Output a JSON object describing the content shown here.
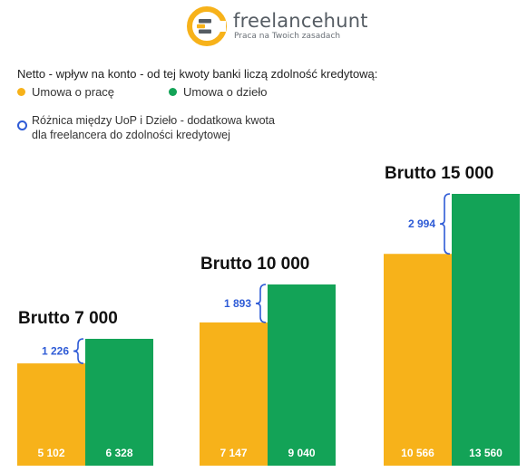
{
  "brand": {
    "name": "freelancehunt",
    "tagline": "Praca na Twoich zasadach",
    "colors": {
      "orange": "#f7b21a",
      "green": "#13a357",
      "gray": "#555c63"
    }
  },
  "subtitle": "Netto - wpływ na konto - od tej kwoty banki liczą zdolność kredytową:",
  "legend": {
    "uop": "Umowa o pracę",
    "dzielo": "Umowa o dzieło",
    "difference_line1": "Różnica między UoP i Dzieło - dodatkowa kwota",
    "difference_line2": "dla freelancera do zdolności kredytowej"
  },
  "chart_data": {
    "type": "bar",
    "categories": [
      "Brutto 7 000",
      "Brutto 10 000",
      "Brutto 15 000"
    ],
    "series": [
      {
        "name": "Umowa o pracę",
        "color": "#f7b21a",
        "values": [
          5102,
          7147,
          10566
        ],
        "labels": [
          "5 102",
          "7 147",
          "10 566"
        ]
      },
      {
        "name": "Umowa o dzieło",
        "color": "#13a357",
        "values": [
          6328,
          9040,
          13560
        ],
        "labels": [
          "6 328",
          "9 040",
          "13 560"
        ]
      }
    ],
    "differences": {
      "values": [
        1226,
        1893,
        2994
      ],
      "labels": [
        "1 226",
        "1 893",
        "2 994"
      ],
      "color": "#2e5bd6"
    },
    "ylim": [
      0,
      13560
    ]
  }
}
